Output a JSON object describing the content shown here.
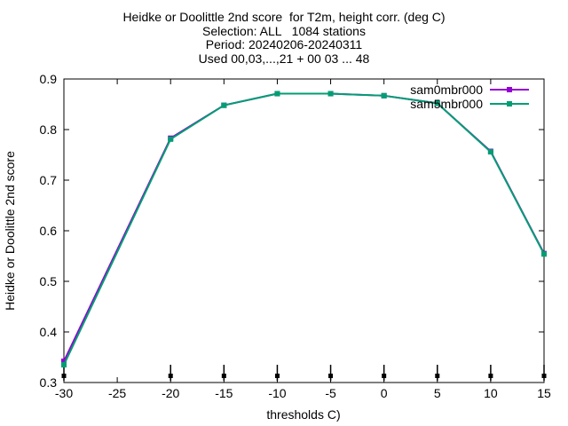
{
  "chart_data": {
    "type": "line",
    "title_lines": [
      "Heidke or Doolittle 2nd score  for T2m, height corr. (deg C)",
      "Selection: ALL   1084 stations",
      "Period: 20240206-20240311",
      "Used 00,03,...,21 + 00 03 ... 48"
    ],
    "xlabel": "thresholds C)",
    "ylabel": "Heidke or Doolittle 2nd score",
    "xlim": [
      -30,
      15
    ],
    "ylim": [
      0.3,
      0.9
    ],
    "x_ticks": [
      -30,
      -25,
      -20,
      -15,
      -10,
      -5,
      0,
      5,
      10,
      15
    ],
    "x_tick_labels": [
      "-30",
      "-25",
      "-20",
      "-15",
      "-10",
      "-5",
      "0",
      "5",
      "10",
      "15"
    ],
    "y_ticks": [
      0.3,
      0.4,
      0.5,
      0.6,
      0.7,
      0.8,
      0.9
    ],
    "y_tick_labels": [
      "0.3",
      "0.4",
      "0.5",
      "0.6",
      "0.7",
      "0.8",
      "0.9"
    ],
    "legend_position": "top-right",
    "grid": false,
    "x": [
      -30,
      -20,
      -15,
      -10,
      -5,
      0,
      5,
      10,
      15
    ],
    "series": [
      {
        "name": "sam0mbr000",
        "color": "#9400d3",
        "values": [
          0.342,
          0.783,
          0.848,
          0.871,
          0.871,
          0.867,
          0.852,
          0.757,
          0.555
        ]
      },
      {
        "name": "sam5mbr000",
        "color": "#009e73",
        "values": [
          0.335,
          0.781,
          0.848,
          0.871,
          0.871,
          0.867,
          0.852,
          0.756,
          0.554
        ]
      }
    ],
    "bottom_markers_x": [
      -30,
      -20,
      -15,
      -10,
      -5,
      0,
      5,
      10,
      15
    ]
  }
}
